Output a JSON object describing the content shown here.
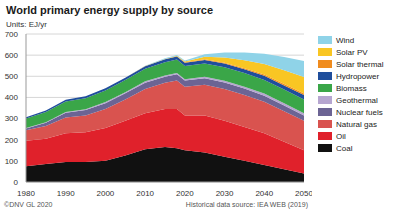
{
  "chart_data": {
    "type": "area",
    "stacked": true,
    "title": "World primary energy supply by source",
    "subtitle": "Units: EJ/yr",
    "credit": "©DNV GL 2020",
    "source": "Historical data source: IEA WEB (2019)",
    "legend": "right",
    "grid": true,
    "x": [
      1980,
      1985,
      1990,
      1995,
      2000,
      2005,
      2010,
      2015,
      2018,
      2020,
      2025,
      2030,
      2035,
      2040,
      2045,
      2050
    ],
    "xlim": [
      1980,
      2050
    ],
    "xticks": [
      1980,
      1990,
      2000,
      2010,
      2020,
      2030,
      2040,
      2050
    ],
    "ylim": [
      0,
      700
    ],
    "yticks": [
      0,
      100,
      200,
      300,
      400,
      500,
      600,
      700
    ],
    "series": [
      {
        "name": "Wind",
        "color": "#8fd3e8",
        "values": [
          0,
          0,
          0,
          0,
          0,
          0,
          1,
          3,
          4,
          5,
          12,
          24,
          36,
          48,
          62,
          75
        ]
      },
      {
        "name": "Solar PV",
        "color": "#f9c623",
        "values": [
          0,
          0,
          0,
          0,
          0,
          0,
          0,
          1,
          2,
          4,
          12,
          25,
          38,
          50,
          65,
          78
        ]
      },
      {
        "name": "Solar thermal",
        "color": "#f08c1e",
        "values": [
          0,
          0,
          0,
          0,
          0,
          0,
          1,
          1,
          1,
          2,
          3,
          4,
          5,
          6,
          7,
          8
        ]
      },
      {
        "name": "Hydropower",
        "color": "#1f4e9c",
        "values": [
          6,
          7,
          8,
          9,
          10,
          11,
          12,
          14,
          15,
          15,
          16,
          17,
          18,
          19,
          20,
          21
        ]
      },
      {
        "name": "Biomass",
        "color": "#3aa648",
        "values": [
          45,
          48,
          50,
          52,
          55,
          57,
          60,
          62,
          63,
          63,
          63,
          64,
          64,
          65,
          65,
          65
        ]
      },
      {
        "name": "Geothermal",
        "color": "#b6a6d0",
        "values": [
          2,
          3,
          4,
          4,
          5,
          5,
          6,
          6,
          6,
          6,
          7,
          8,
          9,
          10,
          10,
          10
        ]
      },
      {
        "name": "Nuclear fuels",
        "color": "#6c6494",
        "values": [
          8,
          15,
          22,
          25,
          28,
          30,
          30,
          28,
          30,
          30,
          31,
          31,
          30,
          28,
          27,
          25
        ]
      },
      {
        "name": "Natural gas",
        "color": "#d9534f",
        "values": [
          50,
          60,
          75,
          80,
          90,
          100,
          115,
          125,
          135,
          135,
          145,
          150,
          152,
          150,
          145,
          140
        ]
      },
      {
        "name": "Oil",
        "color": "#e0212b",
        "values": [
          120,
          120,
          135,
          140,
          155,
          165,
          170,
          180,
          185,
          165,
          175,
          170,
          160,
          150,
          130,
          110
        ]
      },
      {
        "name": "Coal",
        "color": "#111111",
        "values": [
          75,
          85,
          95,
          95,
          100,
          125,
          155,
          165,
          160,
          150,
          140,
          120,
          100,
          80,
          60,
          40
        ]
      }
    ]
  }
}
